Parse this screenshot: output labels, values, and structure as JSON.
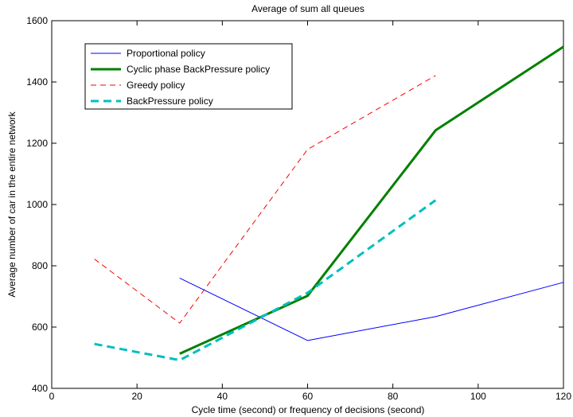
{
  "chart_data": {
    "type": "line",
    "title": "Average of sum all queues",
    "xlabel": "Cycle time (second) or frequency of decisions (second)",
    "ylabel": "Average number of car in the entire network",
    "xlim": [
      0,
      120
    ],
    "ylim": [
      400,
      1600
    ],
    "xticks": [
      0,
      20,
      40,
      60,
      80,
      100,
      120
    ],
    "yticks": [
      400,
      600,
      800,
      1000,
      1200,
      1400,
      1600
    ],
    "grid": false,
    "legend_position": "top-left",
    "series": [
      {
        "name": "Proportional policy",
        "color": "#0000ff",
        "line_style": "solid",
        "line_weight": "thin",
        "x": [
          30,
          60,
          90,
          120
        ],
        "y": [
          760,
          556,
          634,
          746
        ]
      },
      {
        "name": "Cyclic phase BackPressure policy",
        "color": "#008000",
        "line_style": "solid",
        "line_weight": "thick",
        "x": [
          30,
          60,
          90,
          120
        ],
        "y": [
          513,
          702,
          1242,
          1515
        ]
      },
      {
        "name": "Greedy policy",
        "color": "#ff0000",
        "line_style": "dashed",
        "line_weight": "thin",
        "x": [
          10,
          30,
          60,
          90
        ],
        "y": [
          822,
          613,
          1180,
          1421
        ]
      },
      {
        "name": "BackPressure policy",
        "color": "#00bfbf",
        "line_style": "dashed",
        "line_weight": "thick",
        "x": [
          10,
          30,
          60,
          90
        ],
        "y": [
          545,
          492,
          712,
          1014
        ]
      }
    ]
  }
}
